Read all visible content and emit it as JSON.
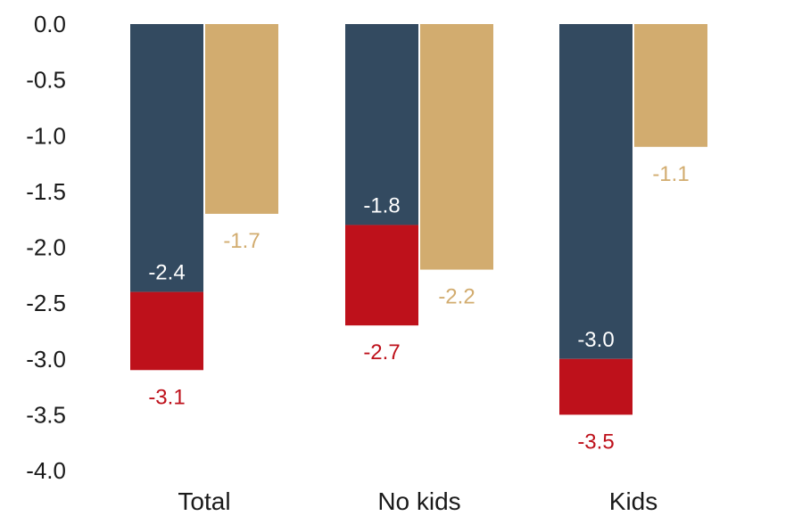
{
  "chart_data": {
    "type": "bar",
    "categories": [
      "Total",
      "No kids",
      "Kids"
    ],
    "series": [
      {
        "values": [
          -2.4,
          -1.8,
          -3.0
        ],
        "labels": [
          "-2.4",
          "-1.8",
          "-3.0"
        ],
        "color": "#334a60",
        "label_color": "#ffffff"
      },
      {
        "values": [
          -3.1,
          -2.7,
          -3.5
        ],
        "labels": [
          "-3.1",
          "-2.7",
          "-3.5"
        ],
        "color": "#be111b",
        "label_color": "#be111b"
      },
      {
        "values": [
          -1.7,
          -2.2,
          -1.1
        ],
        "labels": [
          "-1.7",
          "-2.2",
          "-1.1"
        ],
        "color": "#d2ac6f",
        "label_color": "#d2ac6f"
      }
    ],
    "ylim": [
      -4.0,
      0.0
    ],
    "yticks": [
      "0.0",
      "-0.5",
      "-1.0",
      "-1.5",
      "-2.0",
      "-2.5",
      "-3.0",
      "-3.5",
      "-4.0"
    ],
    "grid": false,
    "legend": "none"
  }
}
